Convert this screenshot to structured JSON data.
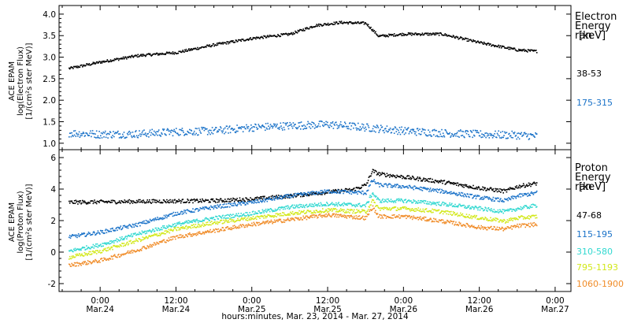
{
  "figure": {
    "x_axis_title": "hours:minutes, Mar. 23, 2014 - Mar. 27, 2014"
  },
  "chart_data": [
    {
      "type": "scatter",
      "panel": "electron",
      "ylabel": [
        "ACE EPAM",
        "log(Electron Flux)",
        "[1/(cm²s ster MeV)]"
      ],
      "ylim": [
        0.85,
        4.2
      ],
      "yticks": [
        1.0,
        1.5,
        2.0,
        2.5,
        3.0,
        3.5,
        4.0
      ],
      "ytick_labels": [
        "1.0",
        "1.5",
        "2.0",
        "2.5",
        "3.0",
        "3.5",
        "4.0"
      ],
      "legend": {
        "title": [
          "Electron",
          "Energy ran",
          "[keV]"
        ],
        "placement": "right"
      },
      "series": [
        {
          "name": "38-53",
          "color": "#000000",
          "x": [
            -5,
            0,
            6,
            12,
            18,
            24,
            30,
            34,
            38,
            42,
            44,
            48,
            54,
            60,
            66,
            69
          ],
          "y": [
            2.75,
            2.9,
            3.05,
            3.12,
            3.3,
            3.45,
            3.55,
            3.75,
            3.82,
            3.8,
            3.5,
            3.55,
            3.55,
            3.35,
            3.18,
            3.15
          ]
        },
        {
          "name": "175-315",
          "color": "#1a72c8",
          "x": [
            -5,
            0,
            6,
            12,
            18,
            24,
            30,
            36,
            42,
            48,
            54,
            60,
            66,
            69
          ],
          "y": [
            1.25,
            1.22,
            1.23,
            1.28,
            1.3,
            1.38,
            1.42,
            1.45,
            1.38,
            1.3,
            1.25,
            1.22,
            1.2,
            1.18
          ]
        }
      ]
    },
    {
      "type": "scatter",
      "panel": "proton",
      "ylabel": [
        "ACE EPAM",
        "log(Proton Flux)",
        "[1/(cm²s ster MeV)]"
      ],
      "ylim": [
        -2.5,
        6.5
      ],
      "yticks": [
        -2,
        0,
        2,
        4,
        6
      ],
      "ytick_labels": [
        "-2",
        "0",
        "2",
        "4",
        "6"
      ],
      "legend": {
        "title": [
          "Proton",
          "Energy ran",
          "[keV]"
        ],
        "placement": "right"
      },
      "x_ticks": [
        0,
        12,
        24,
        36,
        48,
        60,
        72
      ],
      "x_tick_labels": [
        [
          "0:00",
          "Mar.24"
        ],
        [
          "12:00",
          "Mar.24"
        ],
        [
          "0:00",
          "Mar.25"
        ],
        [
          "12:00",
          "Mar.25"
        ],
        [
          "0:00",
          "Mar.26"
        ],
        [
          "12:00",
          "Mar.26"
        ],
        [
          "0:00",
          "Mar.27"
        ]
      ],
      "xlim": [
        -6.5,
        74.5
      ],
      "series": [
        {
          "name": "47-68",
          "color": "#000000",
          "x": [
            -5,
            6,
            18,
            24,
            30,
            36,
            40,
            42,
            43,
            44,
            48,
            54,
            60,
            64,
            66,
            69
          ],
          "y": [
            3.2,
            3.25,
            3.3,
            3.4,
            3.6,
            3.85,
            4.0,
            4.3,
            5.2,
            5.0,
            4.8,
            4.5,
            4.1,
            3.9,
            4.2,
            4.4
          ]
        },
        {
          "name": "115-195",
          "color": "#1a72c8",
          "x": [
            -5,
            0,
            6,
            12,
            18,
            24,
            30,
            36,
            42,
            43,
            44,
            48,
            54,
            60,
            64,
            66,
            69
          ],
          "y": [
            1.0,
            1.3,
            1.8,
            2.5,
            2.9,
            3.2,
            3.6,
            3.9,
            3.8,
            4.6,
            4.3,
            4.2,
            3.9,
            3.5,
            3.3,
            3.6,
            3.8
          ]
        },
        {
          "name": "310-580",
          "color": "#30d8d0",
          "x": [
            -5,
            0,
            6,
            12,
            18,
            24,
            30,
            36,
            42,
            43,
            44,
            48,
            54,
            60,
            64,
            66,
            69
          ],
          "y": [
            0.1,
            0.5,
            1.2,
            1.8,
            2.2,
            2.5,
            2.9,
            3.1,
            3.0,
            3.8,
            3.3,
            3.3,
            3.1,
            2.8,
            2.6,
            2.8,
            3.0
          ]
        },
        {
          "name": "795-1193",
          "color": "#d2e81a",
          "x": [
            -5,
            0,
            6,
            12,
            18,
            24,
            30,
            36,
            42,
            43,
            44,
            48,
            54,
            60,
            64,
            66,
            69
          ],
          "y": [
            -0.3,
            0.1,
            0.8,
            1.5,
            1.9,
            2.2,
            2.5,
            2.7,
            2.6,
            3.3,
            2.8,
            2.8,
            2.6,
            2.2,
            2.0,
            2.2,
            2.3
          ]
        },
        {
          "name": "1060-1900",
          "color": "#f08c28",
          "x": [
            -5,
            0,
            6,
            12,
            18,
            24,
            30,
            36,
            42,
            43,
            44,
            48,
            54,
            60,
            64,
            66,
            69
          ],
          "y": [
            -0.8,
            -0.5,
            0.2,
            1.0,
            1.4,
            1.8,
            2.1,
            2.4,
            2.2,
            2.9,
            2.3,
            2.3,
            2.0,
            1.6,
            1.5,
            1.7,
            1.8
          ]
        }
      ]
    }
  ]
}
